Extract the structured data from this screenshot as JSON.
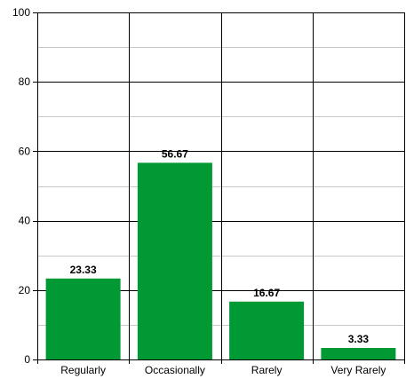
{
  "chart_data": {
    "type": "bar",
    "title": "",
    "xlabel": "",
    "ylabel": "",
    "categories": [
      "Regularly",
      "Occasionally",
      "Rarely",
      "Very Rarely"
    ],
    "values": [
      23.33,
      56.67,
      16.67,
      3.33
    ],
    "value_labels": [
      "23.33",
      "56.67",
      "16.67",
      "3.33"
    ],
    "ylim": [
      0,
      100
    ],
    "y_ticks": [
      0,
      20,
      40,
      60,
      80,
      100
    ],
    "y_tick_labels": [
      "0",
      "20",
      "40",
      "60",
      "80",
      "100"
    ],
    "y_minor_step": 10,
    "grid": true,
    "legend": "none",
    "colors": {
      "bar": "#009933",
      "major_grid": "#000000",
      "minor_grid": "#c8c8c8",
      "axis": "#000000"
    }
  }
}
